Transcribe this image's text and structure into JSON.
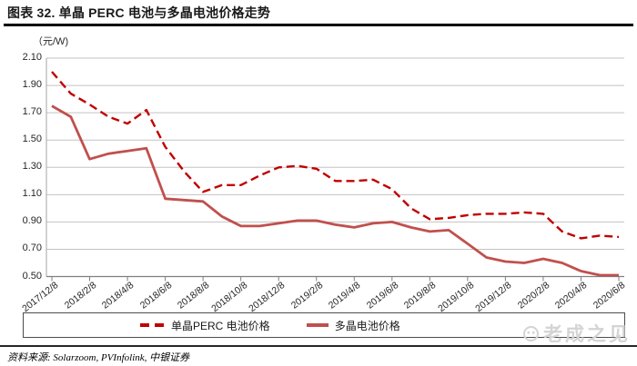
{
  "header": {
    "title": "图表 32. 单晶 PERC 电池与多晶电池价格走势"
  },
  "chart_data": {
    "type": "line",
    "title": "单晶 PERC 电池与多晶电池价格走势",
    "unit_label": "（元/W)",
    "ylabel": "元/W",
    "ylim": [
      0.5,
      2.1
    ],
    "y_ticks": [
      "2.10",
      "1.90",
      "1.70",
      "1.50",
      "1.30",
      "1.10",
      "0.90",
      "0.70",
      "0.50"
    ],
    "x_tick_labels": [
      "2017/12/8",
      "2018/2/8",
      "2018/4/8",
      "2018/6/8",
      "2018/8/8",
      "2018/10/8",
      "2018/12/8",
      "2019/2/8",
      "2019/4/8",
      "2019/6/8",
      "2019/8/8",
      "2019/10/8",
      "2019/12/8",
      "2020/2/8",
      "2020/4/8",
      "2020/6/8"
    ],
    "x_monthly_points": [
      "2017/12",
      "2018/1",
      "2018/2",
      "2018/3",
      "2018/4",
      "2018/5",
      "2018/6",
      "2018/7",
      "2018/8",
      "2018/9",
      "2018/10",
      "2018/11",
      "2018/12",
      "2019/1",
      "2019/2",
      "2019/3",
      "2019/4",
      "2019/5",
      "2019/6",
      "2019/7",
      "2019/8",
      "2019/9",
      "2019/10",
      "2019/11",
      "2019/12",
      "2020/1",
      "2020/2",
      "2020/3",
      "2020/4",
      "2020/5",
      "2020/6"
    ],
    "grid": "horizontal",
    "legend_position": "bottom",
    "series": [
      {
        "name": "单晶PERC 电池价格",
        "style": "dashed",
        "color": "#C00000",
        "values": [
          2.0,
          1.84,
          1.76,
          1.67,
          1.62,
          1.72,
          1.45,
          1.27,
          1.12,
          1.17,
          1.17,
          1.24,
          1.3,
          1.31,
          1.29,
          1.2,
          1.2,
          1.21,
          1.14,
          1.0,
          0.92,
          0.93,
          0.95,
          0.96,
          0.96,
          0.97,
          0.96,
          0.83,
          0.78,
          0.8,
          0.79
        ]
      },
      {
        "name": "多晶电池价格",
        "style": "solid",
        "color": "#C0504D",
        "values": [
          1.75,
          1.67,
          1.36,
          1.4,
          1.42,
          1.44,
          1.07,
          1.06,
          1.05,
          0.94,
          0.87,
          0.87,
          0.89,
          0.91,
          0.91,
          0.88,
          0.86,
          0.89,
          0.9,
          0.86,
          0.83,
          0.84,
          0.74,
          0.64,
          0.61,
          0.6,
          0.63,
          0.6,
          0.54,
          0.51,
          0.51
        ]
      }
    ],
    "colors": {
      "grid": "#c3c3c3",
      "axis": "#7f7f7f",
      "left_axis": "#a6a6a6",
      "text": "#262626"
    }
  },
  "footer": {
    "source": "资料来源: Solarzoom, PVInfolink, 中银证券"
  },
  "watermark": {
    "text": "老成之见"
  }
}
